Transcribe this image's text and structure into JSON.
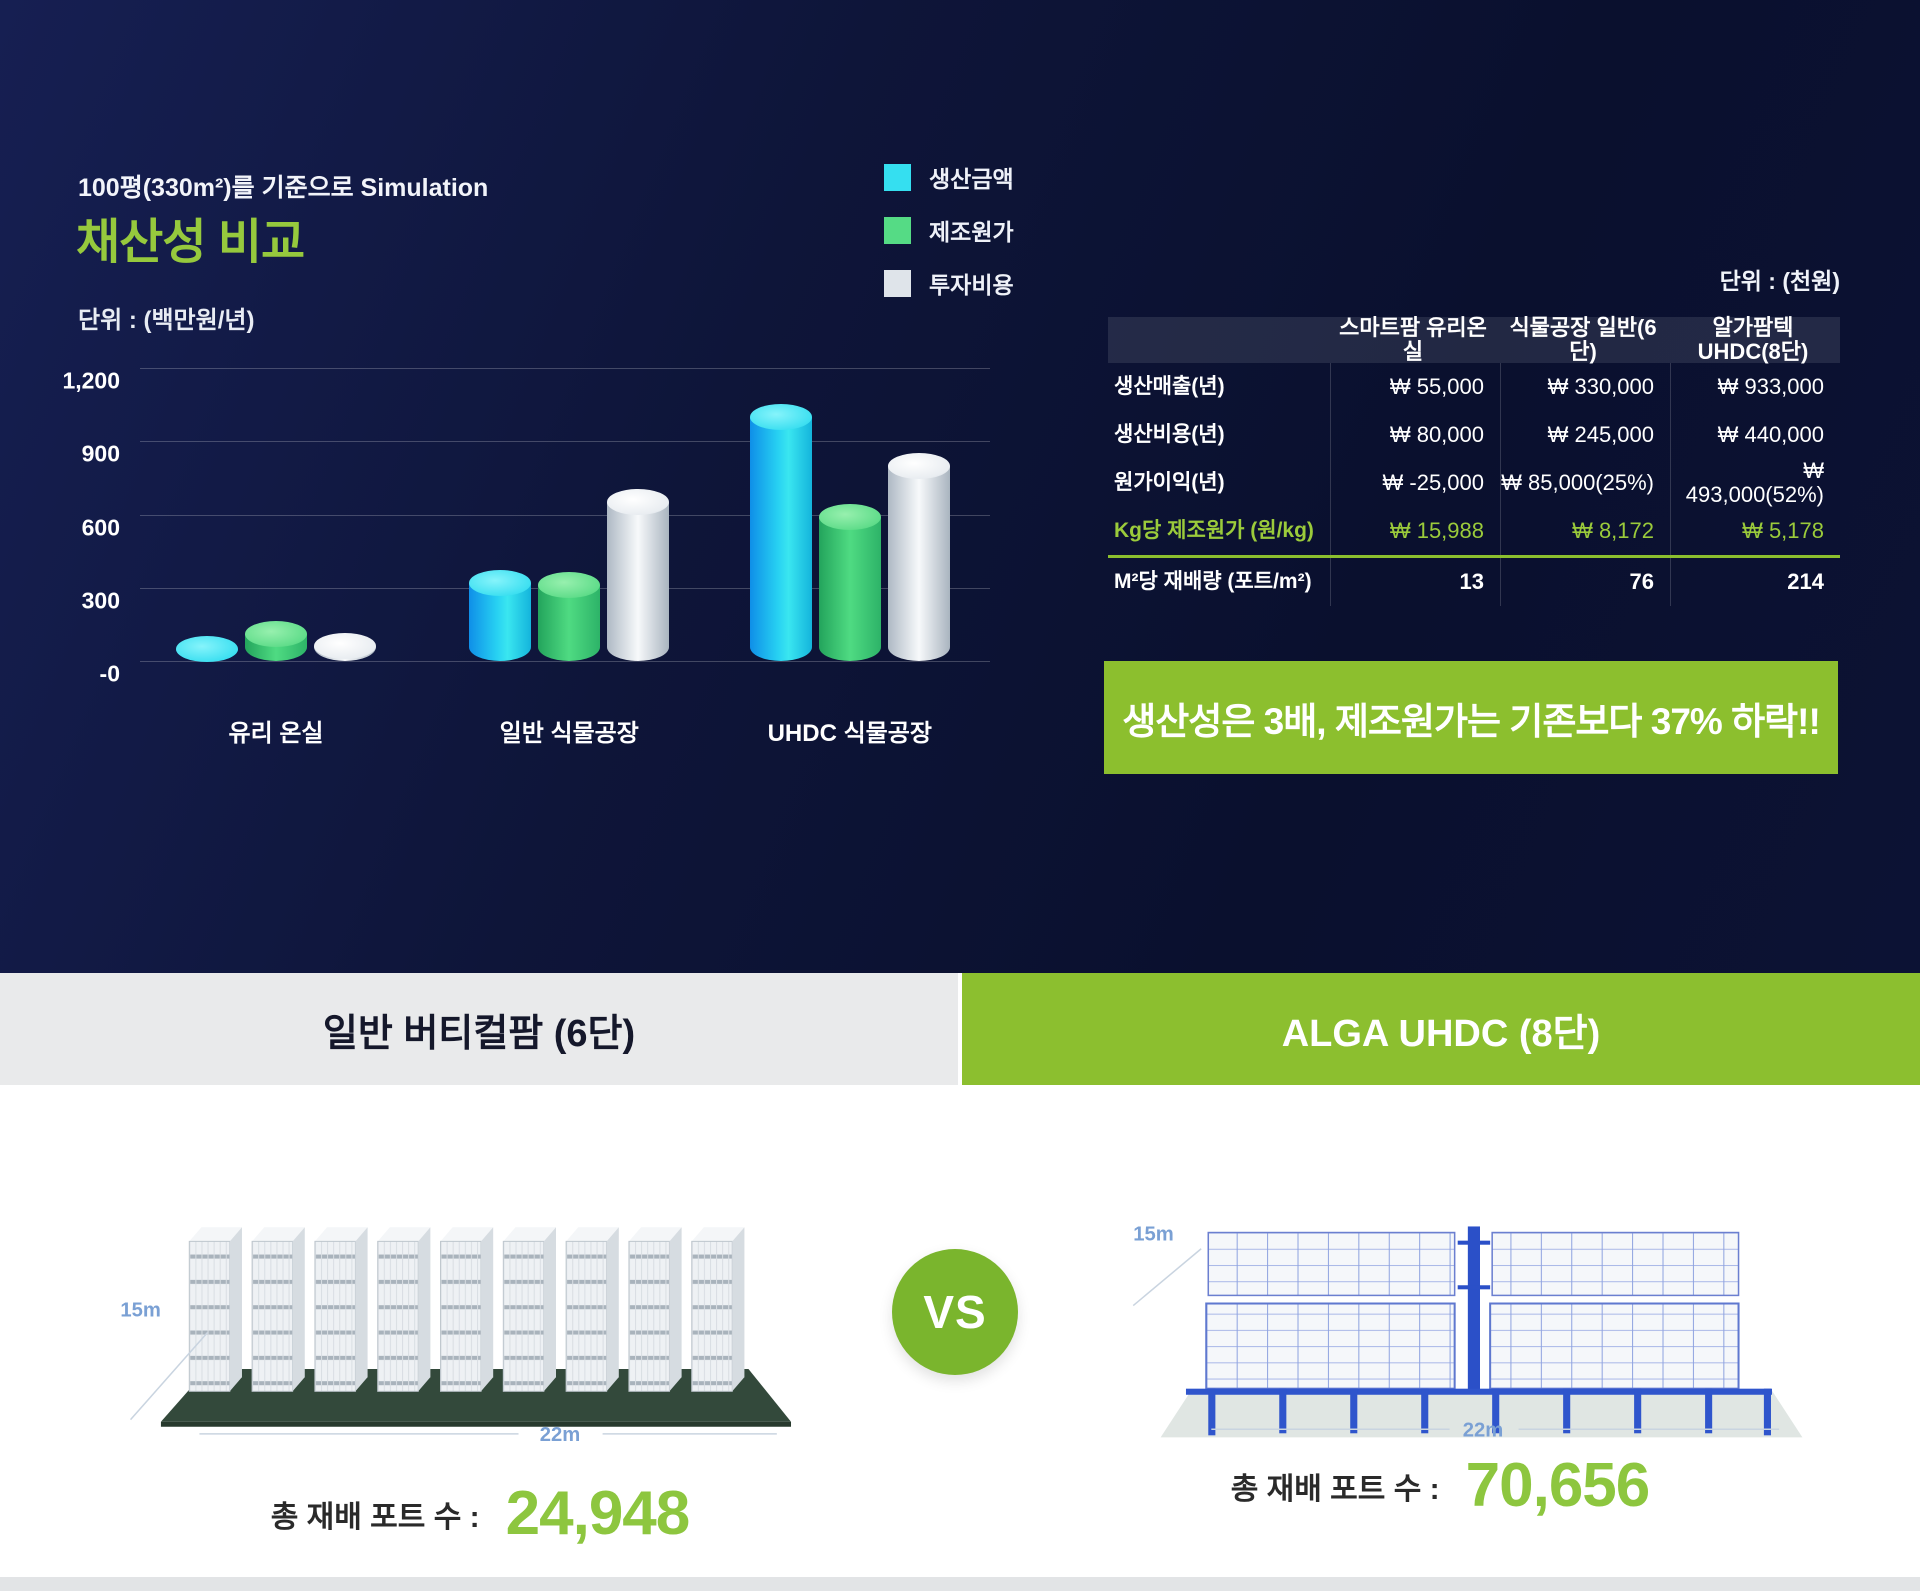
{
  "header": {
    "subtitle": "100평(330m²)를 기준으로 Simulation",
    "title": "채산성 비교",
    "unit": "단위 : (백만원/년)"
  },
  "legend": [
    {
      "label": "생산금액",
      "color": "#35dff0"
    },
    {
      "label": "제조원가",
      "color": "#55db85"
    },
    {
      "label": "투자비용",
      "color": "#dfe4ea"
    }
  ],
  "chart_data": {
    "type": "bar",
    "title": "채산성 비교",
    "subtitle": "100평(330m²)를 기준으로 Simulation",
    "ylabel": "단위 : (백만원/년)",
    "categories": [
      "유리 온실",
      "일반 식물공장",
      "UHDC 식물공장"
    ],
    "series": [
      {
        "name": "생산금액",
        "color": "#35dff0",
        "values": [
          50,
          320,
          1000
        ]
      },
      {
        "name": "제조원가",
        "color": "#55db85",
        "values": [
          110,
          310,
          590
        ]
      },
      {
        "name": "투자비용",
        "color": "#dfe4ea",
        "values": [
          60,
          650,
          800
        ]
      }
    ],
    "ylim": [
      0,
      1200
    ],
    "yticks": [
      {
        "label": "1,200",
        "value": 1200
      },
      {
        "label": "900",
        "value": 900
      },
      {
        "label": "600",
        "value": 600
      },
      {
        "label": "300",
        "value": 300
      },
      {
        "label": "-0",
        "value": 0
      }
    ],
    "grid": true,
    "legend_position": "top-right"
  },
  "table": {
    "unit": "단위 : (천원)",
    "columns": [
      "",
      "스마트팜 유리온실",
      "식물공장 일반(6단)",
      "알가팜텍 UHDC(8단)"
    ],
    "rows": [
      {
        "label": "생산매출(년)",
        "values": [
          "₩ 55,000",
          "₩ 330,000",
          "₩ 933,000"
        ],
        "style": "normal"
      },
      {
        "label": "생산비용(년)",
        "values": [
          "₩ 80,000",
          "₩ 245,000",
          "₩ 440,000"
        ],
        "style": "normal"
      },
      {
        "label": "원가이익(년)",
        "values": [
          "₩ -25,000",
          "₩ 85,000(25%)",
          "₩ 493,000(52%)"
        ],
        "style": "normal"
      },
      {
        "label": "Kg당 제조원가 (원/kg)",
        "values": [
          "₩ 15,988",
          "₩ 8,172",
          "₩ 5,178"
        ],
        "style": "highlight"
      },
      {
        "label": "M²당 재배량 (포트/m²)",
        "values": [
          "13",
          "76",
          "214"
        ],
        "style": "bold"
      }
    ]
  },
  "banner": {
    "text": "생산성은 3배, 제조원가는 기존보다 37% 하락!!",
    "color": "#8cbf2e"
  },
  "compare": {
    "vs": "VS",
    "left": {
      "title": "일반 버티컬팜 (6단)",
      "dim_depth": "15m",
      "dim_width": "22m",
      "total_label": "총 재배 포트 수 :",
      "total_value": "24,948"
    },
    "right": {
      "title": "ALGA UHDC (8단)",
      "dim_depth": "15m",
      "dim_width": "22m",
      "total_label": "총 재배 포트 수 :",
      "total_value": "70,656"
    }
  },
  "colors": {
    "navy_bg": "#0e1539",
    "accent_green": "#8dc63f",
    "banner_green": "#8cbf2e",
    "cyan_series": "#35dff0",
    "green_series": "#55db85",
    "gray_series": "#dfe4ea",
    "dim_label_blue": "#7aa0d4"
  }
}
